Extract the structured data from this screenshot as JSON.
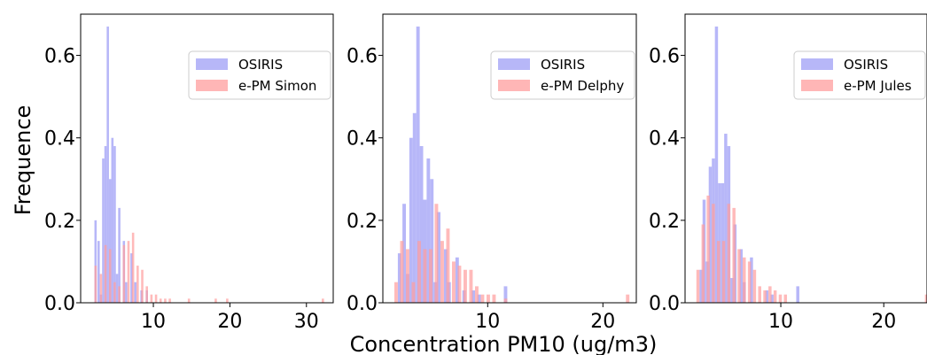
{
  "figure": {
    "ylabel": "Frequence",
    "xlabel": "Concentration PM10 (ug/m3)"
  },
  "chart_data": [
    {
      "type": "bar",
      "histogram": true,
      "xlim": [
        0.5,
        33.5
      ],
      "ylim": [
        0,
        0.7
      ],
      "xticks": [
        10,
        20,
        30
      ],
      "yticks": [
        0.0,
        0.2,
        0.4,
        0.6
      ],
      "ytick_labels": [
        "0.0",
        "0.2",
        "0.4",
        "0.6"
      ],
      "legend": "top-right",
      "grid": false,
      "series": [
        {
          "name": "OSIRIS",
          "color": "#9f9ff5",
          "bins": [
            [
              2.3,
              0.2
            ],
            [
              2.7,
              0.15
            ],
            [
              3.0,
              0.02
            ],
            [
              3.3,
              0.35
            ],
            [
              3.6,
              0.38
            ],
            [
              3.9,
              0.67
            ],
            [
              4.2,
              0.3
            ],
            [
              4.5,
              0.4
            ],
            [
              4.8,
              0.38
            ],
            [
              5.1,
              0.07
            ],
            [
              5.4,
              0.23
            ],
            [
              6.0,
              0.15
            ],
            [
              6.3,
              0.05
            ],
            [
              7.0,
              0.12
            ],
            [
              7.5,
              0.05
            ],
            [
              8.3,
              0.03
            ],
            [
              9.0,
              0.03
            ]
          ]
        },
        {
          "name": "e-PM Simon",
          "color": "#ff9d9d",
          "bins": [
            [
              2.3,
              0.09
            ],
            [
              3.0,
              0.07
            ],
            [
              3.6,
              0.14
            ],
            [
              4.2,
              0.13
            ],
            [
              4.8,
              0.05
            ],
            [
              5.4,
              0.04
            ],
            [
              6.0,
              0.14
            ],
            [
              6.6,
              0.15
            ],
            [
              7.2,
              0.17
            ],
            [
              7.8,
              0.09
            ],
            [
              8.4,
              0.08
            ],
            [
              9.0,
              0.04
            ],
            [
              9.6,
              0.02
            ],
            [
              10.2,
              0.02
            ],
            [
              10.8,
              0.01
            ],
            [
              11.4,
              0.01
            ],
            [
              12.0,
              0.01
            ],
            [
              14.5,
              0.01
            ],
            [
              18.0,
              0.01
            ],
            [
              19.5,
              0.01
            ],
            [
              32.0,
              0.01
            ]
          ]
        }
      ]
    },
    {
      "type": "bar",
      "histogram": true,
      "xlim": [
        0.9,
        22.9
      ],
      "ylim": [
        0,
        0.7
      ],
      "xticks": [
        10,
        20
      ],
      "yticks": [
        0.0,
        0.2,
        0.4,
        0.6
      ],
      "ytick_labels": [
        "0.0",
        "0.2",
        "0.4",
        "0.6"
      ],
      "legend": "top-right",
      "grid": false,
      "series": [
        {
          "name": "OSIRIS",
          "color": "#9f9ff5",
          "bins": [
            [
              2.2,
              0.12
            ],
            [
              2.6,
              0.24
            ],
            [
              2.9,
              0.07
            ],
            [
              3.2,
              0.4
            ],
            [
              3.5,
              0.46
            ],
            [
              3.8,
              0.67
            ],
            [
              4.1,
              0.38
            ],
            [
              4.4,
              0.25
            ],
            [
              4.7,
              0.35
            ],
            [
              5.0,
              0.3
            ],
            [
              5.3,
              0.05
            ],
            [
              5.6,
              0.22
            ],
            [
              6.2,
              0.13
            ],
            [
              6.5,
              0.05
            ],
            [
              7.2,
              0.11
            ],
            [
              7.8,
              0.03
            ],
            [
              8.6,
              0.03
            ],
            [
              9.1,
              0.02
            ],
            [
              11.4,
              0.04
            ]
          ]
        },
        {
          "name": "e-PM Delphy",
          "color": "#ff9d9d",
          "bins": [
            [
              1.9,
              0.05
            ],
            [
              2.4,
              0.15
            ],
            [
              2.9,
              0.13
            ],
            [
              3.4,
              0.05
            ],
            [
              3.9,
              0.15
            ],
            [
              4.4,
              0.13
            ],
            [
              4.9,
              0.13
            ],
            [
              5.4,
              0.24
            ],
            [
              5.9,
              0.15
            ],
            [
              6.4,
              0.18
            ],
            [
              6.9,
              0.1
            ],
            [
              7.4,
              0.09
            ],
            [
              7.9,
              0.08
            ],
            [
              8.4,
              0.08
            ],
            [
              8.9,
              0.04
            ],
            [
              9.4,
              0.02
            ],
            [
              9.9,
              0.02
            ],
            [
              10.4,
              0.02
            ],
            [
              11.4,
              0.01
            ],
            [
              22.0,
              0.02
            ]
          ]
        }
      ]
    },
    {
      "type": "bar",
      "histogram": true,
      "xlim": [
        0.7,
        24.2
      ],
      "ylim": [
        0,
        0.7
      ],
      "xticks": [
        10,
        20
      ],
      "yticks": [
        0.0,
        0.2,
        0.4,
        0.6
      ],
      "ytick_labels": [
        "0.0",
        "0.2",
        "0.4",
        "0.6"
      ],
      "legend": "top-right",
      "grid": false,
      "series": [
        {
          "name": "OSIRIS",
          "color": "#9f9ff5",
          "bins": [
            [
              2.1,
              0.08
            ],
            [
              2.4,
              0.25
            ],
            [
              2.7,
              0.1
            ],
            [
              3.0,
              0.33
            ],
            [
              3.3,
              0.35
            ],
            [
              3.6,
              0.67
            ],
            [
              3.9,
              0.29
            ],
            [
              4.2,
              0.29
            ],
            [
              4.5,
              0.41
            ],
            [
              4.8,
              0.38
            ],
            [
              5.1,
              0.06
            ],
            [
              5.4,
              0.19
            ],
            [
              6.0,
              0.13
            ],
            [
              6.3,
              0.05
            ],
            [
              7.0,
              0.11
            ],
            [
              8.5,
              0.03
            ],
            [
              9.0,
              0.02
            ],
            [
              11.5,
              0.04
            ]
          ]
        },
        {
          "name": "e-PM Jules",
          "color": "#ff9d9d",
          "bins": [
            [
              1.8,
              0.08
            ],
            [
              2.3,
              0.19
            ],
            [
              2.8,
              0.26
            ],
            [
              3.3,
              0.24
            ],
            [
              3.8,
              0.15
            ],
            [
              4.3,
              0.15
            ],
            [
              4.8,
              0.24
            ],
            [
              5.3,
              0.23
            ],
            [
              5.8,
              0.13
            ],
            [
              6.3,
              0.11
            ],
            [
              6.8,
              0.1
            ],
            [
              7.3,
              0.08
            ],
            [
              7.8,
              0.04
            ],
            [
              8.3,
              0.03
            ],
            [
              8.8,
              0.04
            ],
            [
              9.3,
              0.03
            ],
            [
              9.8,
              0.02
            ],
            [
              10.3,
              0.02
            ],
            [
              24.0,
              0.02
            ]
          ]
        }
      ]
    }
  ]
}
